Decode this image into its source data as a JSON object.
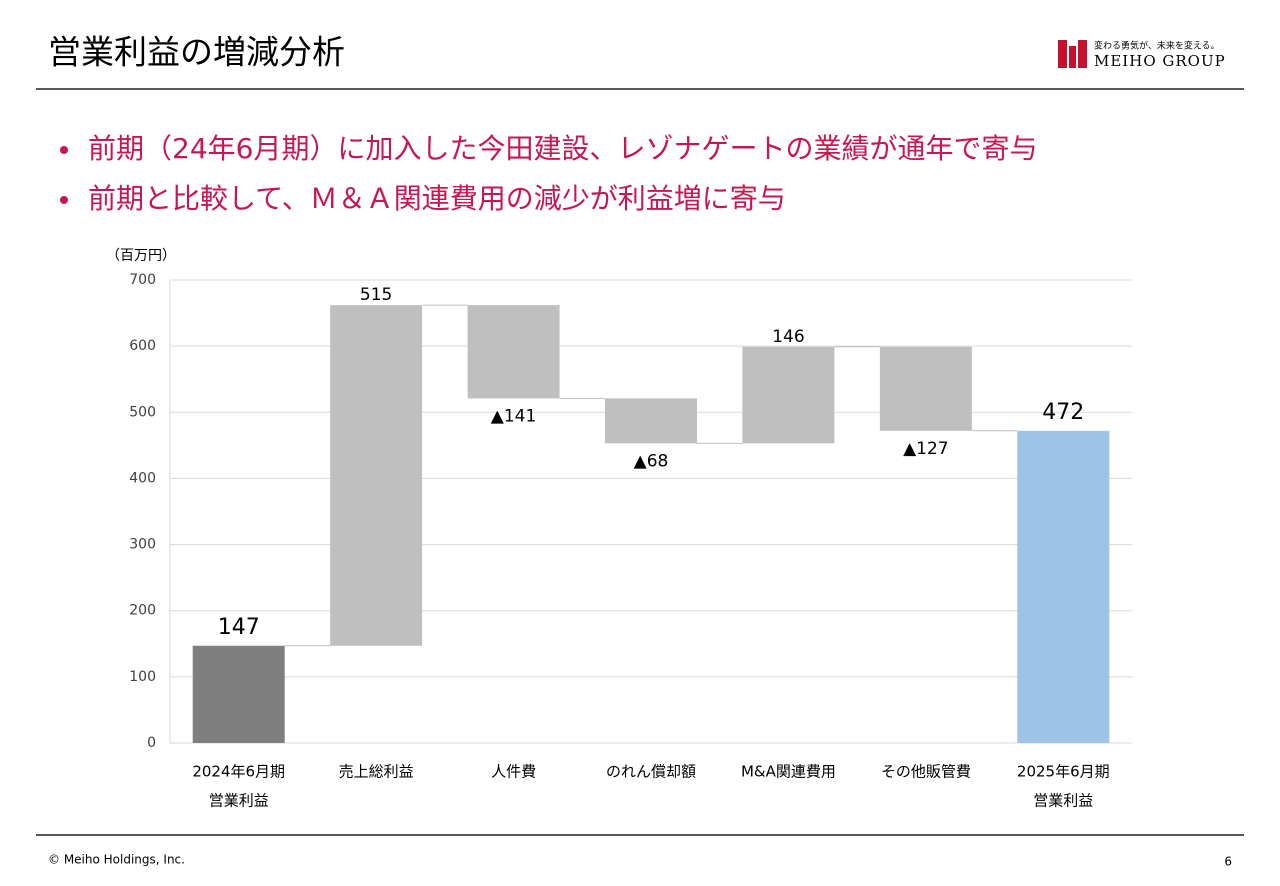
{
  "header": {
    "title": "営業利益の増減分析",
    "logo_tagline": "変わる勇気が、未来を変える。",
    "logo_name": "MEIHO GROUP"
  },
  "bullets": [
    "前期（24年6月期）に加入した今田建設、レゾナゲートの業績が通年で寄与",
    "前期と比較して、Ｍ＆Ａ関連費用の減少が利益増に寄与"
  ],
  "chart_data": {
    "type": "waterfall",
    "y_label": "（百万円）",
    "categories": [
      [
        "2024年6月期",
        "営業利益"
      ],
      [
        "売上総利益"
      ],
      [
        "人件費"
      ],
      [
        "のれん償却額"
      ],
      [
        "M&A関連費用"
      ],
      [
        "その他販管費"
      ],
      [
        "2025年6月期",
        "営業利益"
      ]
    ],
    "values": [
      147,
      515,
      -141,
      -68,
      146,
      -127,
      472
    ],
    "value_labels": [
      "147",
      "515",
      "▲141",
      "▲68",
      "146",
      "▲127",
      "472"
    ],
    "measures": [
      "total",
      "relative",
      "relative",
      "relative",
      "relative",
      "relative",
      "total"
    ],
    "colors": [
      "#7f7f7f",
      "#bfbfbf",
      "#bfbfbf",
      "#bfbfbf",
      "#bfbfbf",
      "#bfbfbf",
      "#9dc3e6"
    ],
    "ylim": [
      0,
      700
    ],
    "yticks": [
      0,
      100,
      200,
      300,
      400,
      500,
      600,
      700
    ],
    "grid": true
  },
  "footer": {
    "copyright": "© Meiho Holdings, Inc.",
    "page": "6"
  }
}
